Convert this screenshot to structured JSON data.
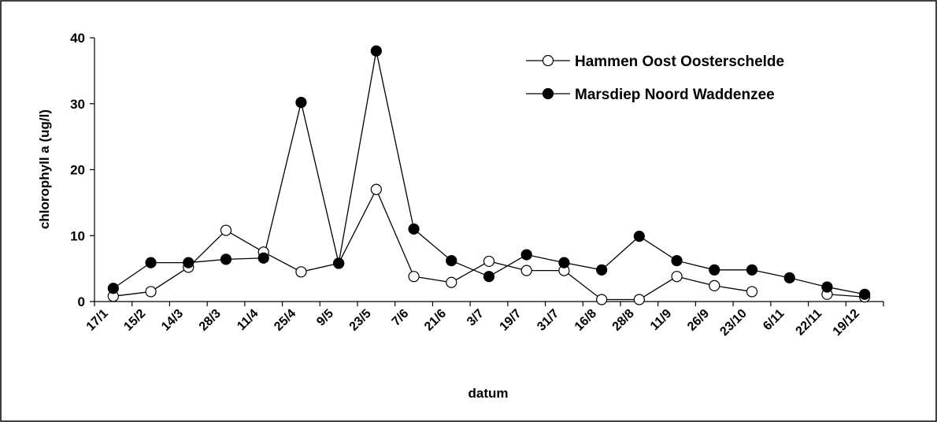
{
  "chart_data": {
    "type": "line",
    "y_label": "chlorophyll a (ug/l)",
    "x_label": "datum",
    "categories": [
      "17/1",
      "15/2",
      "14/3",
      "28/3",
      "11/4",
      "25/4",
      "9/5",
      "23/5",
      "7/6",
      "21/6",
      "3/7",
      "19/7",
      "31/7",
      "16/8",
      "28/8",
      "11/9",
      "26/9",
      "23/10",
      "6/11",
      "22/11",
      "19/12"
    ],
    "series": [
      {
        "name": "Hammen Oost Oosterschelde",
        "color": "#ffffff",
        "values": [
          0.8,
          1.5,
          5.2,
          10.8,
          7.5,
          4.5,
          5.8,
          17,
          3.8,
          2.9,
          6.1,
          4.7,
          4.7,
          0.3,
          0.3,
          3.8,
          2.4,
          1.5,
          null,
          1.1,
          0.7
        ]
      },
      {
        "name": "Marsdiep Noord Waddenzee",
        "color": "#000000",
        "values": [
          2,
          5.9,
          5.9,
          6.4,
          6.6,
          30.2,
          5.8,
          38,
          11,
          6.2,
          3.8,
          7.1,
          5.9,
          4.8,
          9.9,
          6.2,
          4.8,
          4.8,
          3.6,
          2.2,
          1.1
        ]
      }
    ],
    "ylim": [
      0,
      40
    ],
    "yticks": [
      0,
      10,
      20,
      30,
      40
    ],
    "legend": "top-right"
  }
}
